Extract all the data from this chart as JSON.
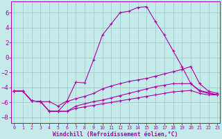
{
  "xlabel": "Windchill (Refroidissement éolien,°C)",
  "xlim": [
    -0.3,
    23.3
  ],
  "ylim": [
    -8.8,
    7.5
  ],
  "yticks": [
    -8,
    -6,
    -4,
    -2,
    0,
    2,
    4,
    6
  ],
  "xticks": [
    0,
    1,
    2,
    3,
    4,
    5,
    6,
    7,
    8,
    9,
    10,
    11,
    12,
    13,
    14,
    15,
    16,
    17,
    18,
    19,
    20,
    21,
    22,
    23
  ],
  "bg_color": "#c5eaea",
  "line_color": "#aa00aa",
  "grid_color": "#a0cccc",
  "curves": [
    {
      "x": [
        0,
        1,
        2,
        3,
        4,
        5,
        6,
        7,
        8,
        9,
        10,
        11,
        12,
        13,
        14,
        15,
        16,
        17,
        18,
        19,
        20,
        21,
        22,
        23
      ],
      "y": [
        -4.5,
        -4.5,
        -5.8,
        -5.9,
        -5.9,
        -6.5,
        -5.8,
        -3.3,
        -3.4,
        -0.3,
        3.0,
        4.5,
        6.0,
        6.2,
        6.7,
        6.8,
        4.8,
        3.0,
        0.9,
        -1.2,
        -3.5,
        -4.4,
        -4.7,
        -5.0
      ]
    },
    {
      "x": [
        0,
        1,
        2,
        3,
        4,
        5,
        6,
        7,
        8,
        9,
        10,
        11,
        12,
        13,
        14,
        15,
        16,
        17,
        18,
        19,
        20,
        21,
        22,
        23
      ],
      "y": [
        -4.5,
        -4.5,
        -5.8,
        -5.9,
        -7.2,
        -7.2,
        -5.9,
        -5.5,
        -5.2,
        -4.8,
        -4.2,
        -3.8,
        -3.5,
        -3.2,
        -3.0,
        -2.8,
        -2.5,
        -2.2,
        -1.9,
        -1.6,
        -1.2,
        -3.5,
        -4.5,
        -4.8
      ]
    },
    {
      "x": [
        0,
        1,
        2,
        3,
        4,
        5,
        6,
        7,
        8,
        9,
        10,
        11,
        12,
        13,
        14,
        15,
        16,
        17,
        18,
        19,
        20,
        21,
        22,
        23
      ],
      "y": [
        -4.5,
        -4.5,
        -5.8,
        -5.9,
        -7.2,
        -7.2,
        -7.2,
        -6.5,
        -6.2,
        -5.9,
        -5.7,
        -5.4,
        -5.1,
        -4.8,
        -4.5,
        -4.2,
        -3.9,
        -3.7,
        -3.5,
        -3.5,
        -3.5,
        -4.5,
        -4.8,
        -5.0
      ]
    },
    {
      "x": [
        0,
        1,
        2,
        3,
        4,
        5,
        6,
        7,
        8,
        9,
        10,
        11,
        12,
        13,
        14,
        15,
        16,
        17,
        18,
        19,
        20,
        21,
        22,
        23
      ],
      "y": [
        -4.5,
        -4.5,
        -5.8,
        -5.9,
        -7.2,
        -7.2,
        -7.2,
        -6.8,
        -6.6,
        -6.4,
        -6.2,
        -6.0,
        -5.8,
        -5.6,
        -5.4,
        -5.2,
        -5.0,
        -4.8,
        -4.6,
        -4.5,
        -4.4,
        -4.8,
        -5.0,
        -5.0
      ]
    }
  ]
}
